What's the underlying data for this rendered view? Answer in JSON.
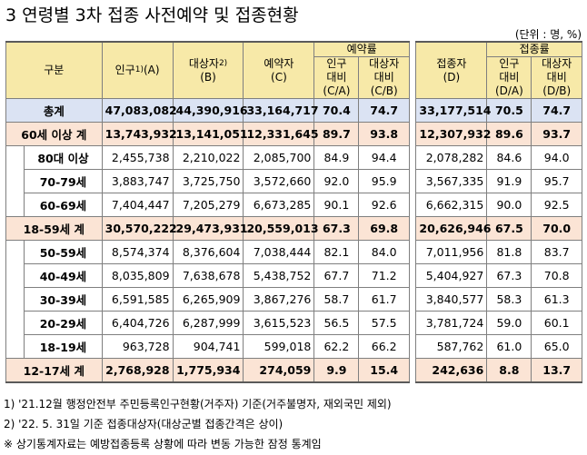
{
  "title": "3  연령별 3차 접종 사전예약 및 접종현황",
  "unit": "(단위 : 명, %)",
  "header": {
    "group_label": "구분",
    "population_label": "인구",
    "population_sup": "1)",
    "population_code": "(A)",
    "target_label": "대상자",
    "target_sup": "2)",
    "target_code": "(B)",
    "reserved_label": "예약자",
    "reserved_code": "(C)",
    "reservation_rate_label": "예약률",
    "vaccinated_label": "접종자",
    "vaccinated_code": "(D)",
    "vaccination_rate_label": "접종률",
    "pop_ratio_line1": "인구",
    "pop_ratio_line2": "대비",
    "target_ratio_line1": "대상자",
    "target_ratio_line2": "대비",
    "ca": "(C/A)",
    "cb": "(C/B)",
    "da": "(D/A)",
    "db": "(D/B)"
  },
  "rows": [
    {
      "label": "총계",
      "population": "47,083,082",
      "target": "44,390,916",
      "reserved": "33,164,717",
      "ca": "70.4",
      "cb": "74.7",
      "vaccinated": "33,177,514",
      "da": "70.5",
      "db": "74.7"
    },
    {
      "label": "60세 이상 계",
      "population": "13,743,932",
      "target": "13,141,051",
      "reserved": "12,331,645",
      "ca": "89.7",
      "cb": "93.8",
      "vaccinated": "12,307,932",
      "da": "89.6",
      "db": "93.7"
    },
    {
      "label": "80대 이상",
      "population": "2,455,738",
      "target": "2,210,022",
      "reserved": "2,085,700",
      "ca": "84.9",
      "cb": "94.4",
      "vaccinated": "2,078,282",
      "da": "84.6",
      "db": "94.0"
    },
    {
      "label": "70-79세",
      "population": "3,883,747",
      "target": "3,725,750",
      "reserved": "3,572,660",
      "ca": "92.0",
      "cb": "95.9",
      "vaccinated": "3,567,335",
      "da": "91.9",
      "db": "95.7"
    },
    {
      "label": "60-69세",
      "population": "7,404,447",
      "target": "7,205,279",
      "reserved": "6,673,285",
      "ca": "90.1",
      "cb": "92.6",
      "vaccinated": "6,662,315",
      "da": "90.0",
      "db": "92.5"
    },
    {
      "label": "18-59세 계",
      "population": "30,570,222",
      "target": "29,473,931",
      "reserved": "20,559,013",
      "ca": "67.3",
      "cb": "69.8",
      "vaccinated": "20,626,946",
      "da": "67.5",
      "db": "70.0"
    },
    {
      "label": "50-59세",
      "population": "8,574,374",
      "target": "8,376,604",
      "reserved": "7,038,444",
      "ca": "82.1",
      "cb": "84.0",
      "vaccinated": "7,011,956",
      "da": "81.8",
      "db": "83.7"
    },
    {
      "label": "40-49세",
      "population": "8,035,809",
      "target": "7,638,678",
      "reserved": "5,438,752",
      "ca": "67.7",
      "cb": "71.2",
      "vaccinated": "5,404,927",
      "da": "67.3",
      "db": "70.8"
    },
    {
      "label": "30-39세",
      "population": "6,591,585",
      "target": "6,265,909",
      "reserved": "3,867,276",
      "ca": "58.7",
      "cb": "61.7",
      "vaccinated": "3,840,577",
      "da": "58.3",
      "db": "61.3"
    },
    {
      "label": "20-29세",
      "population": "6,404,726",
      "target": "6,287,999",
      "reserved": "3,615,523",
      "ca": "56.5",
      "cb": "57.5",
      "vaccinated": "3,781,724",
      "da": "59.0",
      "db": "60.1"
    },
    {
      "label": "18-19세",
      "population": "963,728",
      "target": "904,741",
      "reserved": "599,018",
      "ca": "62.2",
      "cb": "66.2",
      "vaccinated": "587,762",
      "da": "61.0",
      "db": "65.0"
    },
    {
      "label": "12-17세 계",
      "population": "2,768,928",
      "target": "1,775,934",
      "reserved": "274,059",
      "ca": "9.9",
      "cb": "15.4",
      "vaccinated": "242,636",
      "da": "8.8",
      "db": "13.7"
    }
  ],
  "notes": [
    "1) '21.12월 행정안전부 주민등록인구현황(거주자) 기준(거주불명자, 재외국민 제외)",
    "2) '22. 5. 31일 기준 접종대상자(대상군별 접종간격은 상이)",
    "※ 상기통계자료는 예방접종등록 상황에 따라 변동 가능한 잠정 통계임"
  ]
}
